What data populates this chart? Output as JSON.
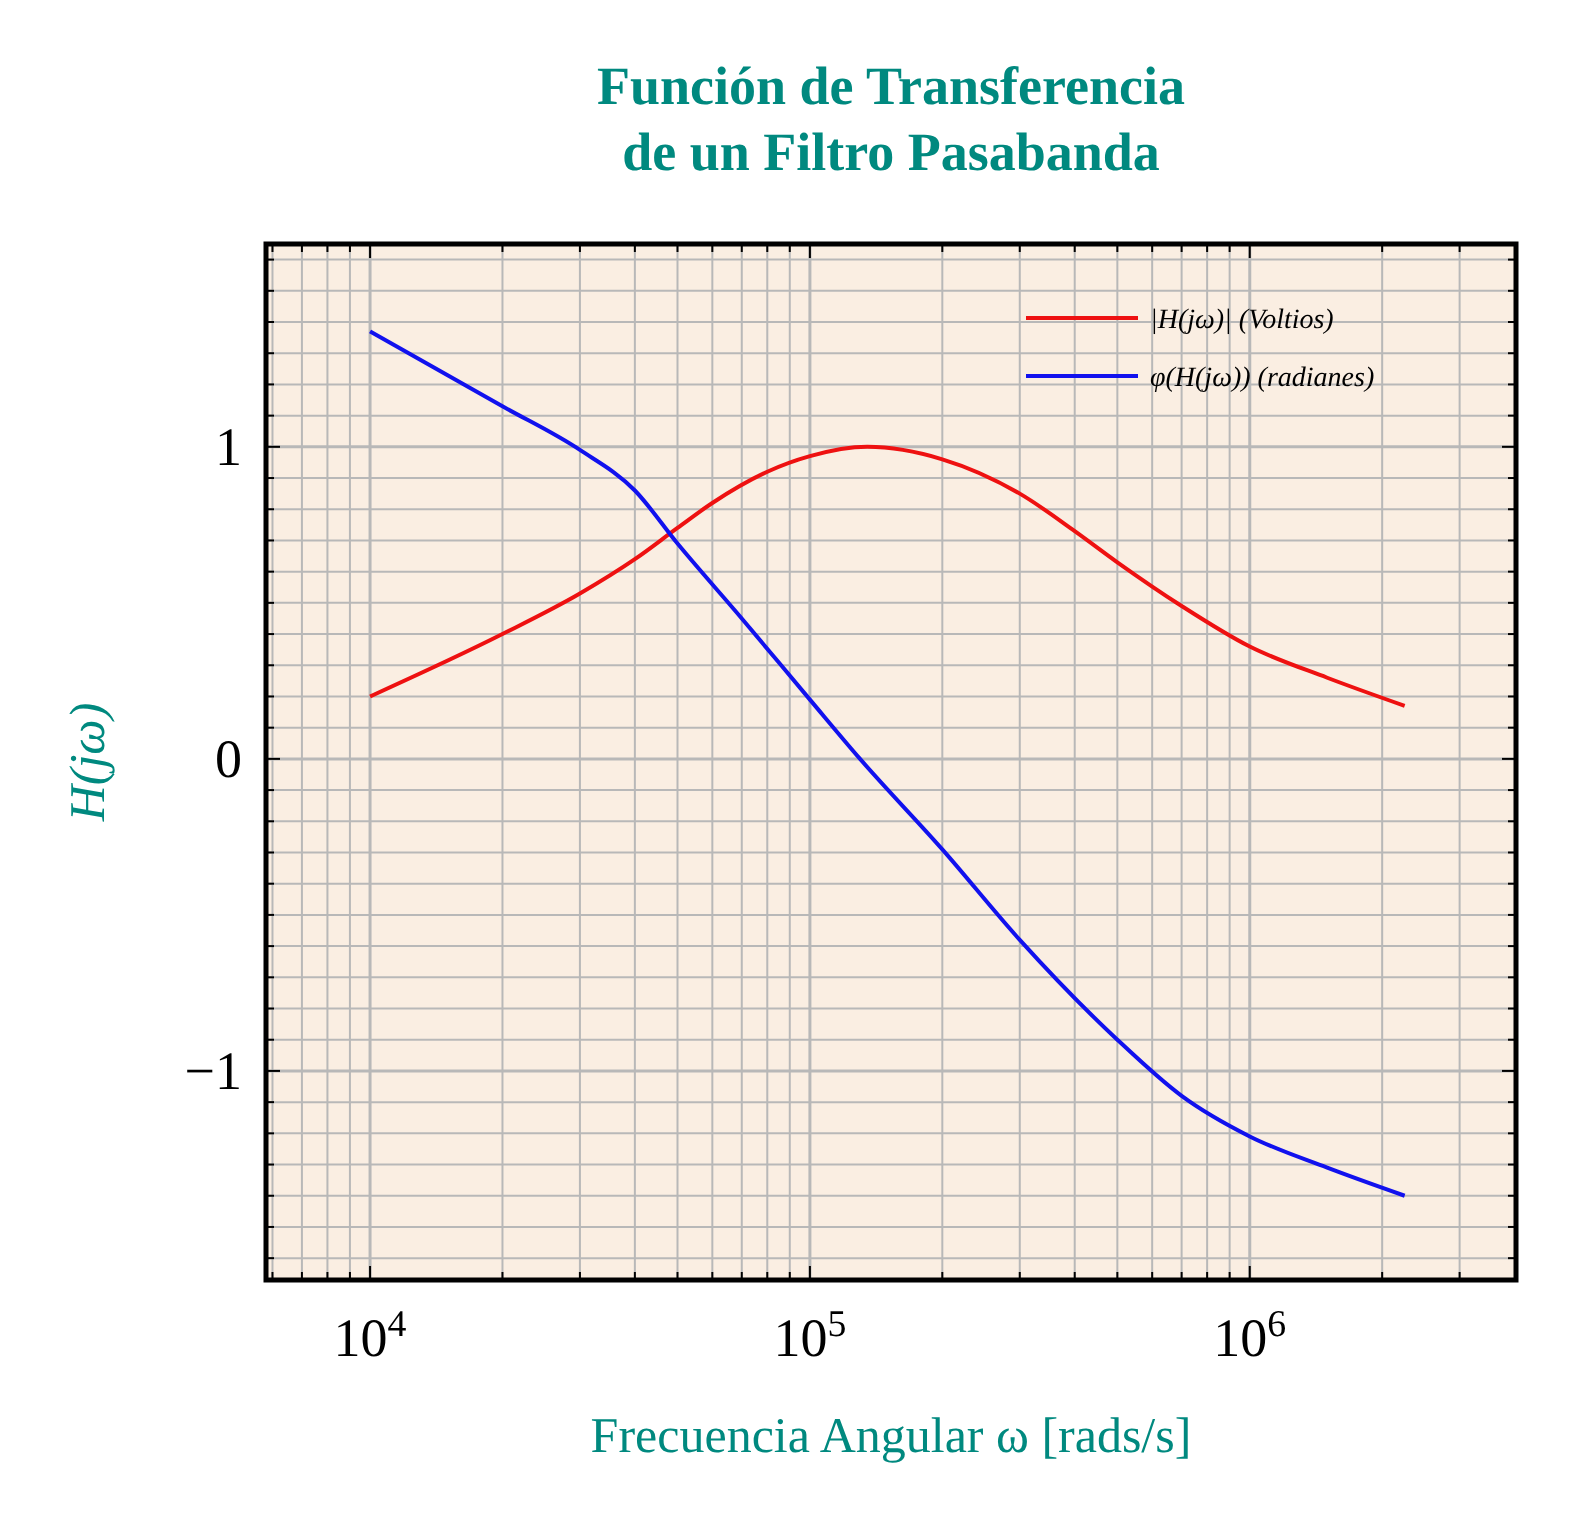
{
  "chart_data": {
    "type": "line",
    "title": "Función de Transferencia\nde un Filtro Pasabanda",
    "xlabel": "Frecuencia Angular ω [rads/s]",
    "ylabel": "H(jω)",
    "log": "x",
    "grid": true,
    "legend": "top right",
    "line_style": "solid",
    "xlim": [
      5800,
      4030000
    ],
    "ylim": [
      -1.67,
      1.65
    ],
    "xticks": [
      {
        "value": 6000,
        "label": null
      },
      {
        "value": 7000,
        "label": null
      },
      {
        "value": 8000,
        "label": null
      },
      {
        "value": 9000,
        "label": null
      },
      {
        "value": 10000,
        "label": "10$^{4}$"
      },
      {
        "value": 20000,
        "label": null
      },
      {
        "value": 30000,
        "label": null
      },
      {
        "value": 40000,
        "label": null
      },
      {
        "value": 50000,
        "label": null
      },
      {
        "value": 60000,
        "label": null
      },
      {
        "value": 70000,
        "label": null
      },
      {
        "value": 80000,
        "label": null
      },
      {
        "value": 90000,
        "label": null
      },
      {
        "value": 100000,
        "label": "10$^{5}$"
      },
      {
        "value": 200000,
        "label": null
      },
      {
        "value": 300000,
        "label": null
      },
      {
        "value": 400000,
        "label": null
      },
      {
        "value": 500000,
        "label": null
      },
      {
        "value": 600000,
        "label": null
      },
      {
        "value": 700000,
        "label": null
      },
      {
        "value": 800000,
        "label": null
      },
      {
        "value": 900000,
        "label": null
      },
      {
        "value": 1000000,
        "label": "10$^{6}$"
      },
      {
        "value": 2000000,
        "label": null
      },
      {
        "value": 3000000,
        "label": null
      }
    ],
    "yticks": [
      {
        "value": -1.6,
        "label": null
      },
      {
        "value": -1.5,
        "label": null
      },
      {
        "value": -1.4,
        "label": null
      },
      {
        "value": -1.3,
        "label": null
      },
      {
        "value": -1.2,
        "label": null
      },
      {
        "value": -1.1,
        "label": null
      },
      {
        "value": -1,
        "label": "−1"
      },
      {
        "value": -0.9,
        "label": null
      },
      {
        "value": -0.8,
        "label": null
      },
      {
        "value": -0.7,
        "label": null
      },
      {
        "value": -0.6,
        "label": null
      },
      {
        "value": -0.5,
        "label": null
      },
      {
        "value": -0.4,
        "label": null
      },
      {
        "value": -0.3,
        "label": null
      },
      {
        "value": -0.2,
        "label": null
      },
      {
        "value": -0.1,
        "label": null
      },
      0,
      {
        "value": 0.1,
        "label": null
      },
      {
        "value": 0.2,
        "label": null
      },
      {
        "value": 0.3,
        "label": null
      },
      {
        "value": 0.4,
        "label": null
      },
      {
        "value": 0.5,
        "label": null
      },
      {
        "value": 0.6,
        "label": null
      },
      {
        "value": 0.7,
        "label": null
      },
      {
        "value": 0.8,
        "label": null
      },
      {
        "value": 0.9,
        "label": null
      },
      1,
      {
        "value": 1.1,
        "label": null
      },
      {
        "value": 1.2,
        "label": null
      },
      {
        "value": 1.3,
        "label": null
      },
      {
        "value": 1.4,
        "label": null
      },
      {
        "value": 1.5,
        "label": null
      },
      {
        "value": 1.6,
        "label": null
      }
    ],
    "series": [
      {
        "name": "|H(jω)| (Voltios)",
        "color": "#ee1111",
        "x": [
          10000,
          20000,
          30000,
          40000,
          50000,
          60000,
          80000,
          100000,
          135000,
          200000,
          300000,
          400000,
          500000,
          700000,
          1000000,
          1500000,
          2250000
        ],
        "values": [
          0.2,
          0.4,
          0.53,
          0.64,
          0.74,
          0.82,
          0.92,
          0.97,
          1.0,
          0.96,
          0.85,
          0.73,
          0.63,
          0.49,
          0.36,
          0.26,
          0.17
        ]
      },
      {
        "name": "φ(H(jω)) (radianes)",
        "color": "#1111ee",
        "x": [
          10000,
          20000,
          30000,
          40000,
          50000,
          70000,
          100000,
          130000,
          200000,
          300000,
          500000,
          700000,
          1000000,
          1500000,
          2250000
        ],
        "values": [
          1.37,
          1.13,
          0.99,
          0.86,
          0.69,
          0.45,
          0.19,
          0,
          -0.29,
          -0.58,
          -0.9,
          -1.08,
          -1.21,
          -1.31,
          -1.4
        ]
      }
    ]
  }
}
